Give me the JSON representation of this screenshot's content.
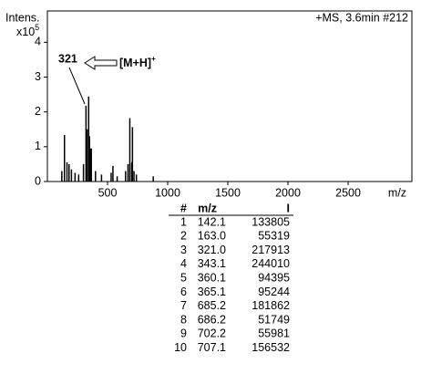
{
  "chart_data": {
    "type": "stick",
    "ylabel": "Intens.",
    "yscale_base": "x10",
    "yscale_exp": "5",
    "title": "+MS, 3.6min #212",
    "xlabel": "m/z",
    "xlim": [
      0,
      3030
    ],
    "ylim": [
      0,
      4.9
    ],
    "xticks": [
      500,
      1000,
      1500,
      2000,
      2500
    ],
    "yticks": [
      0,
      1,
      2,
      3,
      4
    ],
    "color": "#000000",
    "peaks": {
      "x": [
        120,
        142.1,
        163.0,
        180,
        200,
        230,
        260,
        300,
        321.0,
        330,
        343.1,
        350,
        360.1,
        365.1,
        400,
        450,
        530,
        545,
        580,
        650,
        670,
        685.2,
        686.2,
        702.2,
        707.1,
        720,
        740,
        880
      ],
      "values": [
        0.3,
        1.338,
        0.553,
        0.5,
        0.35,
        0.25,
        0.2,
        0.5,
        2.179,
        1.5,
        2.44,
        1.3,
        0.944,
        0.952,
        0.3,
        0.2,
        0.25,
        0.45,
        0.15,
        0.3,
        0.5,
        1.819,
        0.517,
        0.56,
        1.565,
        0.3,
        0.2,
        0.15
      ]
    },
    "annotation": {
      "peak_label": "321",
      "ion": "[M+H]",
      "ion_sup": "+"
    }
  },
  "table": {
    "header": [
      "#",
      "m/z",
      "I"
    ],
    "rows": [
      [
        "1",
        "142.1",
        "133805"
      ],
      [
        "2",
        "163.0",
        "55319"
      ],
      [
        "3",
        "321.0",
        "217913"
      ],
      [
        "4",
        "343.1",
        "244010"
      ],
      [
        "5",
        "360.1",
        "94395"
      ],
      [
        "6",
        "365.1",
        "95244"
      ],
      [
        "7",
        "685.2",
        "181862"
      ],
      [
        "8",
        "686.2",
        "51749"
      ],
      [
        "9",
        "702.2",
        "55981"
      ],
      [
        "10",
        "707.1",
        "156532"
      ]
    ]
  }
}
